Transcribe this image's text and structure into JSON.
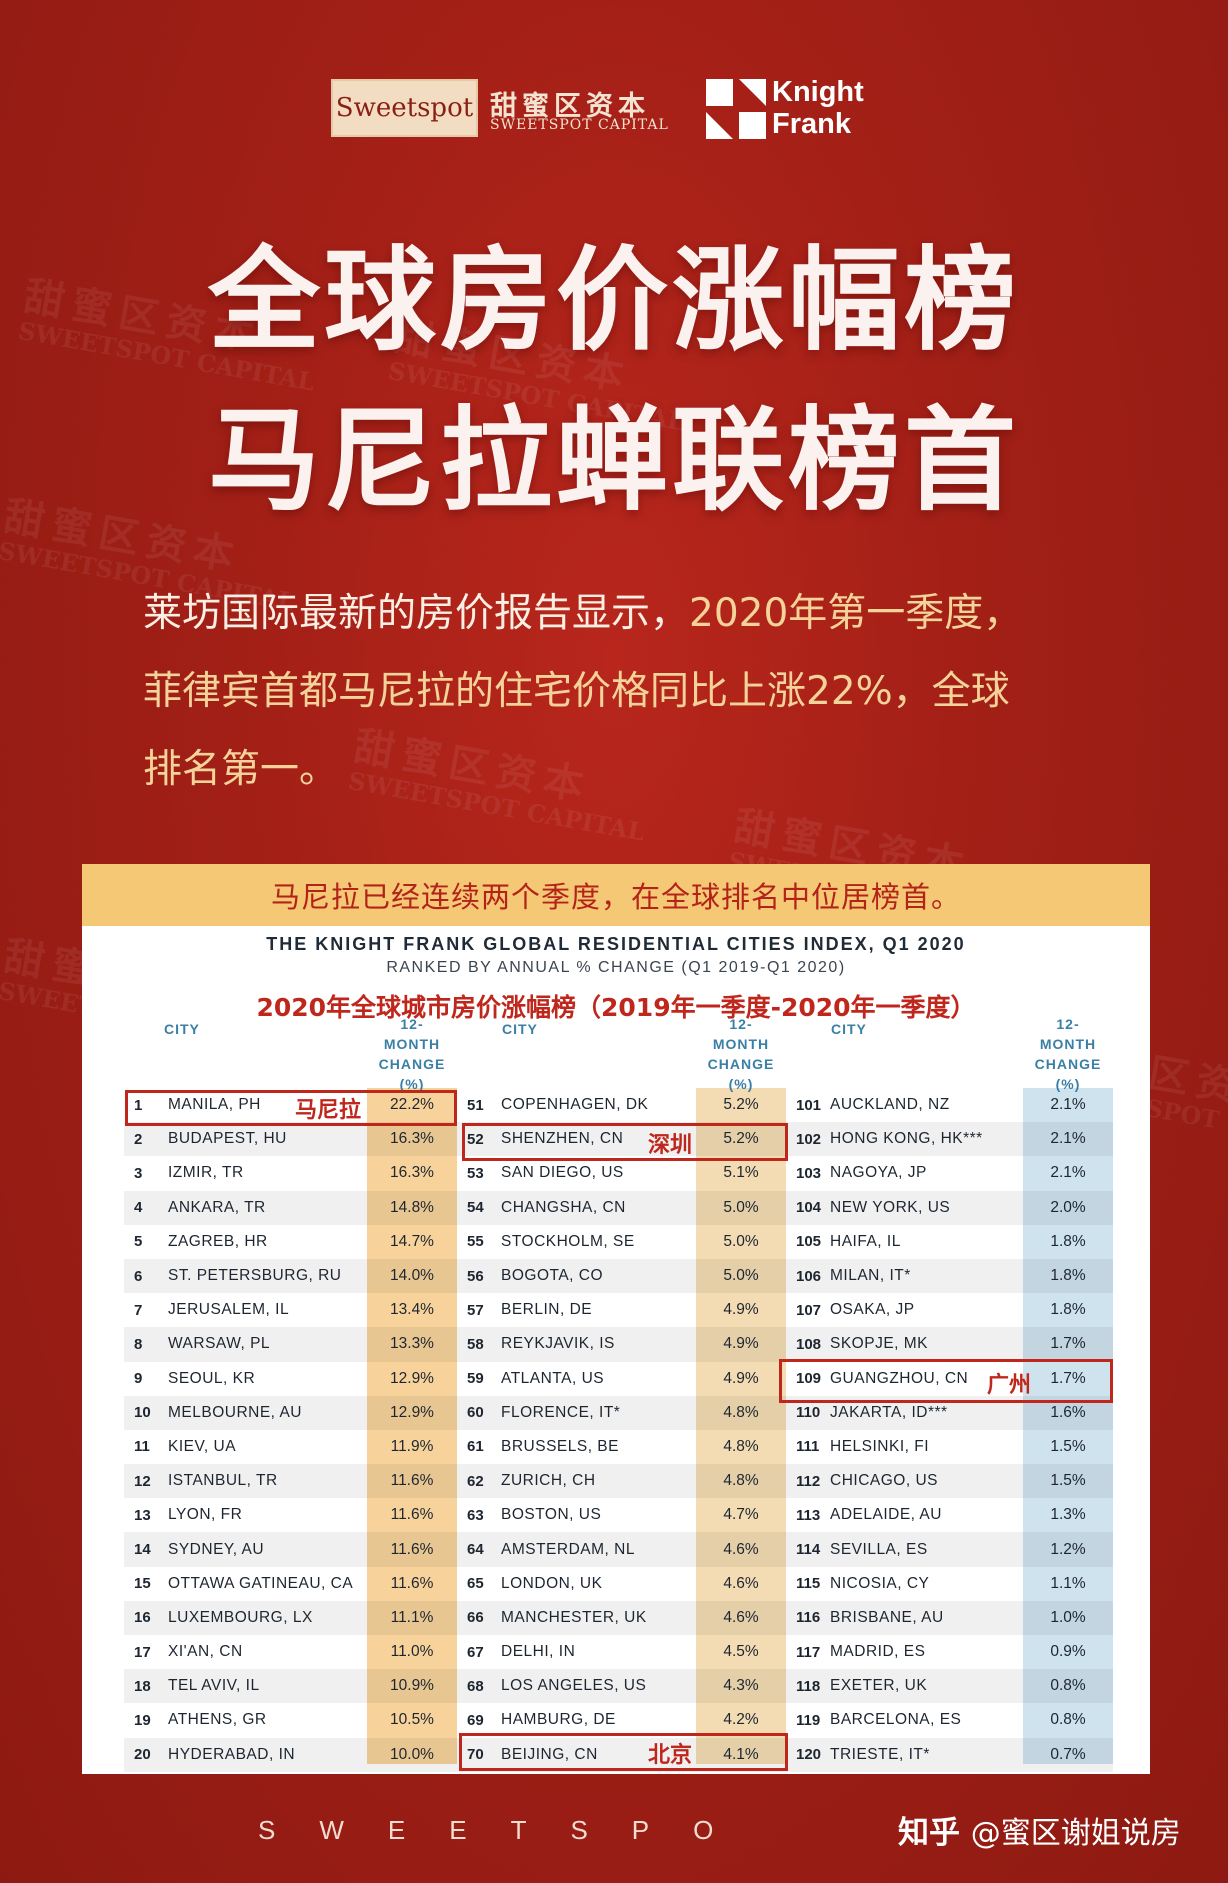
{
  "header": {
    "logo_en": "Sweetspot",
    "brand_cn": "甜蜜区资本",
    "brand_en": "SWEETSPOT CAPITAL",
    "kf_line1": "Knight",
    "kf_line2": "Frank"
  },
  "headline": {
    "line1": "全球房价涨幅榜",
    "line2": "马尼拉蝉联榜首"
  },
  "intro": {
    "line1_a": "莱坊国际最新的房价报告显示，",
    "line1_b": "2020年第一季度，",
    "line2": "菲律宾首都马尼拉的住宅价格同比上涨22%，全球",
    "line3": "排名第一。"
  },
  "card": {
    "banner": "马尼拉已经连续两个季度，在全球排名中位居榜首。",
    "title": "THE KNIGHT FRANK GLOBAL RESIDENTIAL CITIES INDEX, Q1 2020",
    "subtitle": "RANKED BY ANNUAL % CHANGE (Q1 2019-Q1 2020)",
    "title_cn": "2020年全球城市房价涨幅榜（2019年一季度-2020年一季度）",
    "col_city": "CITY",
    "col_change_1": "12-",
    "col_change_2": "MONTH",
    "col_change_3": "CHANGE",
    "col_change_4": "(%)",
    "colors": {
      "col1": "#f7d39b",
      "col2": "#f3dcb3",
      "col3": "#cfe3ef"
    }
  },
  "columns": [
    {
      "rows": [
        {
          "rank": "1",
          "city": "MANILA, PH",
          "change": "22.2%"
        },
        {
          "rank": "2",
          "city": "BUDAPEST, HU",
          "change": "16.3%"
        },
        {
          "rank": "3",
          "city": "IZMIR, TR",
          "change": "16.3%"
        },
        {
          "rank": "4",
          "city": "ANKARA, TR",
          "change": "14.8%"
        },
        {
          "rank": "5",
          "city": "ZAGREB, HR",
          "change": "14.7%"
        },
        {
          "rank": "6",
          "city": "ST. PETERSBURG, RU",
          "change": "14.0%"
        },
        {
          "rank": "7",
          "city": "JERUSALEM, IL",
          "change": "13.4%"
        },
        {
          "rank": "8",
          "city": "WARSAW, PL",
          "change": "13.3%"
        },
        {
          "rank": "9",
          "city": "SEOUL, KR",
          "change": "12.9%"
        },
        {
          "rank": "10",
          "city": "MELBOURNE, AU",
          "change": "12.9%"
        },
        {
          "rank": "11",
          "city": "KIEV, UA",
          "change": "11.9%"
        },
        {
          "rank": "12",
          "city": "ISTANBUL, TR",
          "change": "11.6%"
        },
        {
          "rank": "13",
          "city": "LYON, FR",
          "change": "11.6%"
        },
        {
          "rank": "14",
          "city": "SYDNEY, AU",
          "change": "11.6%"
        },
        {
          "rank": "15",
          "city": "OTTAWA GATINEAU, CA",
          "change": "11.6%"
        },
        {
          "rank": "16",
          "city": "LUXEMBOURG, LX",
          "change": "11.1%"
        },
        {
          "rank": "17",
          "city": "XI'AN, CN",
          "change": "11.0%"
        },
        {
          "rank": "18",
          "city": "TEL AVIV, IL",
          "change": "10.9%"
        },
        {
          "rank": "19",
          "city": "ATHENS, GR",
          "change": "10.5%"
        },
        {
          "rank": "20",
          "city": "HYDERABAD, IN",
          "change": "10.0%"
        }
      ]
    },
    {
      "rows": [
        {
          "rank": "51",
          "city": "COPENHAGEN, DK",
          "change": "5.2%"
        },
        {
          "rank": "52",
          "city": "SHENZHEN, CN",
          "change": "5.2%"
        },
        {
          "rank": "53",
          "city": "SAN DIEGO, US",
          "change": "5.1%"
        },
        {
          "rank": "54",
          "city": "CHANGSHA, CN",
          "change": "5.0%"
        },
        {
          "rank": "55",
          "city": "STOCKHOLM, SE",
          "change": "5.0%"
        },
        {
          "rank": "56",
          "city": "BOGOTA, CO",
          "change": "5.0%"
        },
        {
          "rank": "57",
          "city": "BERLIN, DE",
          "change": "4.9%"
        },
        {
          "rank": "58",
          "city": "REYKJAVIK, IS",
          "change": "4.9%"
        },
        {
          "rank": "59",
          "city": "ATLANTA, US",
          "change": "4.9%"
        },
        {
          "rank": "60",
          "city": "FLORENCE, IT*",
          "change": "4.8%"
        },
        {
          "rank": "61",
          "city": "BRUSSELS, BE",
          "change": "4.8%"
        },
        {
          "rank": "62",
          "city": "ZURICH, CH",
          "change": "4.8%"
        },
        {
          "rank": "63",
          "city": "BOSTON, US",
          "change": "4.7%"
        },
        {
          "rank": "64",
          "city": "AMSTERDAM, NL",
          "change": "4.6%"
        },
        {
          "rank": "65",
          "city": "LONDON, UK",
          "change": "4.6%"
        },
        {
          "rank": "66",
          "city": "MANCHESTER, UK",
          "change": "4.6%"
        },
        {
          "rank": "67",
          "city": "DELHI, IN",
          "change": "4.5%"
        },
        {
          "rank": "68",
          "city": "LOS ANGELES, US",
          "change": "4.3%"
        },
        {
          "rank": "69",
          "city": "HAMBURG, DE",
          "change": "4.2%"
        },
        {
          "rank": "70",
          "city": "BEIJING, CN",
          "change": "4.1%"
        }
      ]
    },
    {
      "rows": [
        {
          "rank": "101",
          "city": "AUCKLAND, NZ",
          "change": "2.1%"
        },
        {
          "rank": "102",
          "city": "HONG KONG, HK***",
          "change": "2.1%"
        },
        {
          "rank": "103",
          "city": "NAGOYA, JP",
          "change": "2.1%"
        },
        {
          "rank": "104",
          "city": "NEW YORK, US",
          "change": "2.0%"
        },
        {
          "rank": "105",
          "city": "HAIFA, IL",
          "change": "1.8%"
        },
        {
          "rank": "106",
          "city": "MILAN, IT*",
          "change": "1.8%"
        },
        {
          "rank": "107",
          "city": "OSAKA, JP",
          "change": "1.8%"
        },
        {
          "rank": "108",
          "city": "SKOPJE, MK",
          "change": "1.7%"
        },
        {
          "rank": "109",
          "city": "GUANGZHOU, CN",
          "change": "1.7%"
        },
        {
          "rank": "110",
          "city": "JAKARTA, ID***",
          "change": "1.6%"
        },
        {
          "rank": "111",
          "city": "HELSINKI, FI",
          "change": "1.5%"
        },
        {
          "rank": "112",
          "city": "CHICAGO, US",
          "change": "1.5%"
        },
        {
          "rank": "113",
          "city": "ADELAIDE, AU",
          "change": "1.3%"
        },
        {
          "rank": "114",
          "city": "SEVILLA, ES",
          "change": "1.2%"
        },
        {
          "rank": "115",
          "city": "NICOSIA, CY",
          "change": "1.1%"
        },
        {
          "rank": "116",
          "city": "BRISBANE, AU",
          "change": "1.0%"
        },
        {
          "rank": "117",
          "city": "MADRID, ES",
          "change": "0.9%"
        },
        {
          "rank": "118",
          "city": "EXETER, UK",
          "change": "0.8%"
        },
        {
          "rank": "119",
          "city": "BARCELONA, ES",
          "change": "0.8%"
        },
        {
          "rank": "120",
          "city": "TRIESTE, IT*",
          "change": "0.7%"
        }
      ]
    }
  ],
  "highlights": {
    "manila": "马尼拉",
    "shenzhen": "深圳",
    "guangzhou": "广州",
    "beijing": "北京"
  },
  "watermark": {
    "cn": "甜蜜区资本",
    "en": "SWEETSPOT CAPITAL"
  },
  "footer": {
    "letters": "SWEETSPO",
    "zhihu": "知乎",
    "author": "@蜜区谢姐说房"
  }
}
